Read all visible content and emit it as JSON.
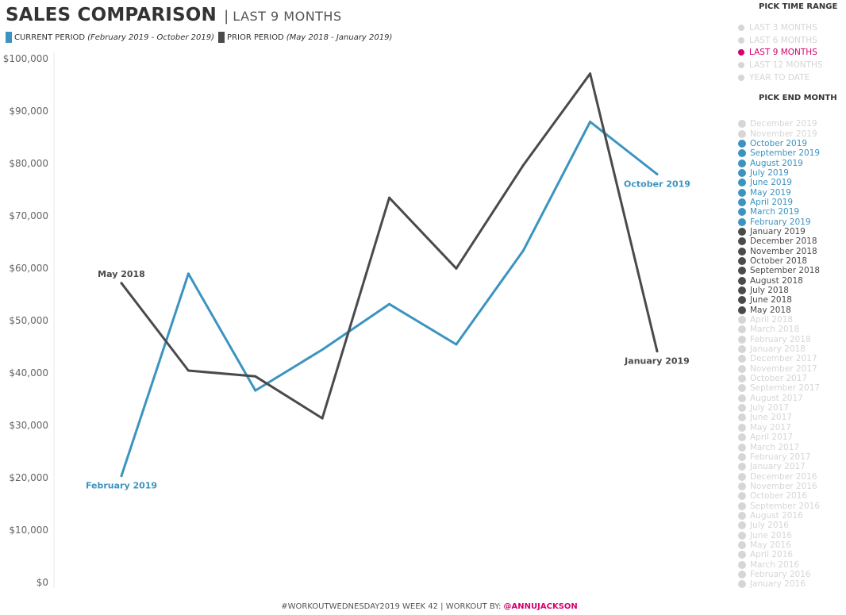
{
  "header": {
    "title": "SALES COMPARISON",
    "separator": "|",
    "subtitle": "LAST 9 MONTHS"
  },
  "legend": {
    "current_label": "CURRENT PERIOD",
    "current_range": "(February 2019 - October 2019)",
    "prior_label": "PRIOR PERIOD",
    "prior_range": "(May 2018 - January 2019)"
  },
  "colors": {
    "current": "#3b94bf",
    "prior": "#4a4a4a",
    "accent": "#d6006f",
    "inactive": "#d6d6d6",
    "text": "#444444"
  },
  "chart_data": {
    "type": "line",
    "x": [
      1,
      2,
      3,
      4,
      5,
      6,
      7,
      8,
      9
    ],
    "series": [
      {
        "name": "CURRENT PERIOD",
        "color": "#3b94bf",
        "values": [
          20200,
          58800,
          36500,
          44300,
          53000,
          45300,
          63200,
          87800,
          77800
        ],
        "start_label": "February 2019",
        "end_label": "October 2019"
      },
      {
        "name": "PRIOR PERIOD",
        "color": "#4a4a4a",
        "values": [
          57000,
          40300,
          39200,
          31200,
          73300,
          59800,
          79500,
          97000,
          44000
        ],
        "start_label": "May 2018",
        "end_label": "January 2019"
      }
    ],
    "ylim": [
      0,
      100000
    ],
    "y_ticks": [
      0,
      10000,
      20000,
      30000,
      40000,
      50000,
      60000,
      70000,
      80000,
      90000,
      100000
    ],
    "y_tick_labels": [
      "$0",
      "$10,000",
      "$20,000",
      "$30,000",
      "$40,000",
      "$50,000",
      "$60,000",
      "$70,000",
      "$80,000",
      "$90,000",
      "$100,000"
    ],
    "grid": false
  },
  "time_range": {
    "heading": "PICK TIME RANGE",
    "options": [
      {
        "label": "LAST 3 MONTHS",
        "state": "inactive"
      },
      {
        "label": "LAST 6 MONTHS",
        "state": "inactive"
      },
      {
        "label": "LAST 9 MONTHS",
        "state": "selected"
      },
      {
        "label": "LAST 12 MONTHS",
        "state": "inactive"
      },
      {
        "label": "YEAR TO DATE",
        "state": "inactive"
      }
    ]
  },
  "end_month": {
    "heading": "PICK END MONTH",
    "months": [
      {
        "label": "December 2019",
        "state": "inactive"
      },
      {
        "label": "November 2019",
        "state": "inactive"
      },
      {
        "label": "October 2019",
        "state": "current"
      },
      {
        "label": "September 2019",
        "state": "current"
      },
      {
        "label": "August 2019",
        "state": "current"
      },
      {
        "label": "July 2019",
        "state": "current"
      },
      {
        "label": "June 2019",
        "state": "current"
      },
      {
        "label": "May 2019",
        "state": "current"
      },
      {
        "label": "April 2019",
        "state": "current"
      },
      {
        "label": "March 2019",
        "state": "current"
      },
      {
        "label": "February 2019",
        "state": "current"
      },
      {
        "label": "January 2019",
        "state": "prior"
      },
      {
        "label": "December 2018",
        "state": "prior"
      },
      {
        "label": "November 2018",
        "state": "prior"
      },
      {
        "label": "October 2018",
        "state": "prior"
      },
      {
        "label": "September 2018",
        "state": "prior"
      },
      {
        "label": "August 2018",
        "state": "prior"
      },
      {
        "label": "July 2018",
        "state": "prior"
      },
      {
        "label": "June 2018",
        "state": "prior"
      },
      {
        "label": "May 2018",
        "state": "prior"
      },
      {
        "label": "April 2018",
        "state": "inactive"
      },
      {
        "label": "March 2018",
        "state": "inactive"
      },
      {
        "label": "February 2018",
        "state": "inactive"
      },
      {
        "label": "January 2018",
        "state": "inactive"
      },
      {
        "label": "December 2017",
        "state": "inactive"
      },
      {
        "label": "November 2017",
        "state": "inactive"
      },
      {
        "label": "October 2017",
        "state": "inactive"
      },
      {
        "label": "September 2017",
        "state": "inactive"
      },
      {
        "label": "August 2017",
        "state": "inactive"
      },
      {
        "label": "July 2017",
        "state": "inactive"
      },
      {
        "label": "June 2017",
        "state": "inactive"
      },
      {
        "label": "May 2017",
        "state": "inactive"
      },
      {
        "label": "April 2017",
        "state": "inactive"
      },
      {
        "label": "March 2017",
        "state": "inactive"
      },
      {
        "label": "February 2017",
        "state": "inactive"
      },
      {
        "label": "January 2017",
        "state": "inactive"
      },
      {
        "label": "December 2016",
        "state": "inactive"
      },
      {
        "label": "November 2016",
        "state": "inactive"
      },
      {
        "label": "October 2016",
        "state": "inactive"
      },
      {
        "label": "September 2016",
        "state": "inactive"
      },
      {
        "label": "August 2016",
        "state": "inactive"
      },
      {
        "label": "July 2016",
        "state": "inactive"
      },
      {
        "label": "June 2016",
        "state": "inactive"
      },
      {
        "label": "May 2016",
        "state": "inactive"
      },
      {
        "label": "April 2016",
        "state": "inactive"
      },
      {
        "label": "March 2016",
        "state": "inactive"
      },
      {
        "label": "February 2016",
        "state": "inactive"
      },
      {
        "label": "January 2016",
        "state": "inactive"
      }
    ]
  },
  "footer": {
    "text": "#WORKOUTWEDNESDAY2019 WEEK 42 | WORKOUT BY: ",
    "handle": "@ANNUJACKSON"
  }
}
